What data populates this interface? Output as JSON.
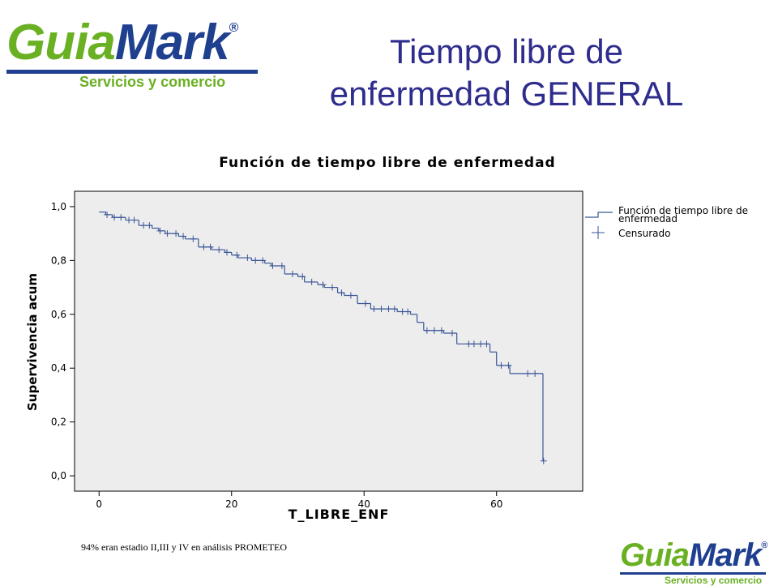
{
  "logo": {
    "first": "Guia",
    "second": "Mark",
    "mark": "®",
    "tagline": "Servicios y comercio"
  },
  "title": [
    "Tiempo libre de",
    "enfermedad GENERAL"
  ],
  "chart_data": {
    "type": "step",
    "title": "Función de tiempo libre de enfermedad",
    "x_label": "T_LIBRE_ENF",
    "y_label": "Supervivencia acum",
    "xlim": [
      -3.7,
      73
    ],
    "ylim": [
      -0.057,
      1.057
    ],
    "xticks": [
      0,
      20,
      40,
      60
    ],
    "yticks": [
      {
        "value": 0,
        "label": "0,0"
      },
      {
        "value": 0.2,
        "label": "0,2"
      },
      {
        "value": 0.4,
        "label": "0,4"
      },
      {
        "value": 0.6,
        "label": "0,6"
      },
      {
        "value": 0.8,
        "label": "0,8"
      },
      {
        "value": 1,
        "label": "1,0"
      }
    ],
    "legend": "right",
    "series": [
      {
        "name": "Función de tiempo libre de enfermedad",
        "color": "#3a5697",
        "x": [
          0,
          1,
          2,
          4,
          6,
          8,
          9,
          10,
          12,
          13,
          15,
          17,
          19,
          20,
          21,
          23,
          25,
          26,
          28,
          30,
          31,
          33,
          34,
          36,
          37,
          39,
          41,
          45,
          47,
          48,
          49,
          52,
          54,
          59,
          60,
          62,
          67
        ],
        "values": [
          0.98,
          0.97,
          0.96,
          0.95,
          0.93,
          0.92,
          0.91,
          0.9,
          0.89,
          0.88,
          0.85,
          0.84,
          0.83,
          0.82,
          0.81,
          0.8,
          0.79,
          0.78,
          0.75,
          0.74,
          0.72,
          0.71,
          0.7,
          0.68,
          0.67,
          0.64,
          0.62,
          0.61,
          0.6,
          0.57,
          0.54,
          0.53,
          0.49,
          0.46,
          0.41,
          0.38,
          0.055
        ]
      },
      {
        "name": "Censurado",
        "color": "#3a5697",
        "marker": "+",
        "x": [
          1.2,
          2.3,
          3.3,
          4.5,
          5.3,
          6.7,
          7.6,
          9.2,
          10.3,
          11.6,
          12.7,
          14.2,
          15.8,
          16.8,
          18.1,
          19.3,
          20.8,
          22.4,
          23.6,
          24.7,
          26.2,
          27.6,
          29.2,
          30.7,
          32.1,
          33.8,
          35.2,
          36.6,
          38,
          40.2,
          41.5,
          42.6,
          43.7,
          44.6,
          45.8,
          46.6,
          49.5,
          50.6,
          51.7,
          53.3,
          55.8,
          56.6,
          57.6,
          58.5,
          60.7,
          61.8,
          64.7,
          65.8,
          67.1
        ],
        "values": [
          0.97,
          0.96,
          0.96,
          0.95,
          0.95,
          0.93,
          0.93,
          0.91,
          0.9,
          0.9,
          0.89,
          0.88,
          0.85,
          0.85,
          0.84,
          0.83,
          0.82,
          0.81,
          0.8,
          0.8,
          0.78,
          0.78,
          0.75,
          0.74,
          0.72,
          0.71,
          0.7,
          0.68,
          0.67,
          0.64,
          0.62,
          0.62,
          0.62,
          0.62,
          0.61,
          0.61,
          0.54,
          0.54,
          0.54,
          0.53,
          0.49,
          0.49,
          0.49,
          0.49,
          0.41,
          0.41,
          0.38,
          0.38,
          0.055
        ]
      }
    ]
  },
  "footnote": "94% eran estadio II,III y IV en análisis PROMETEO"
}
